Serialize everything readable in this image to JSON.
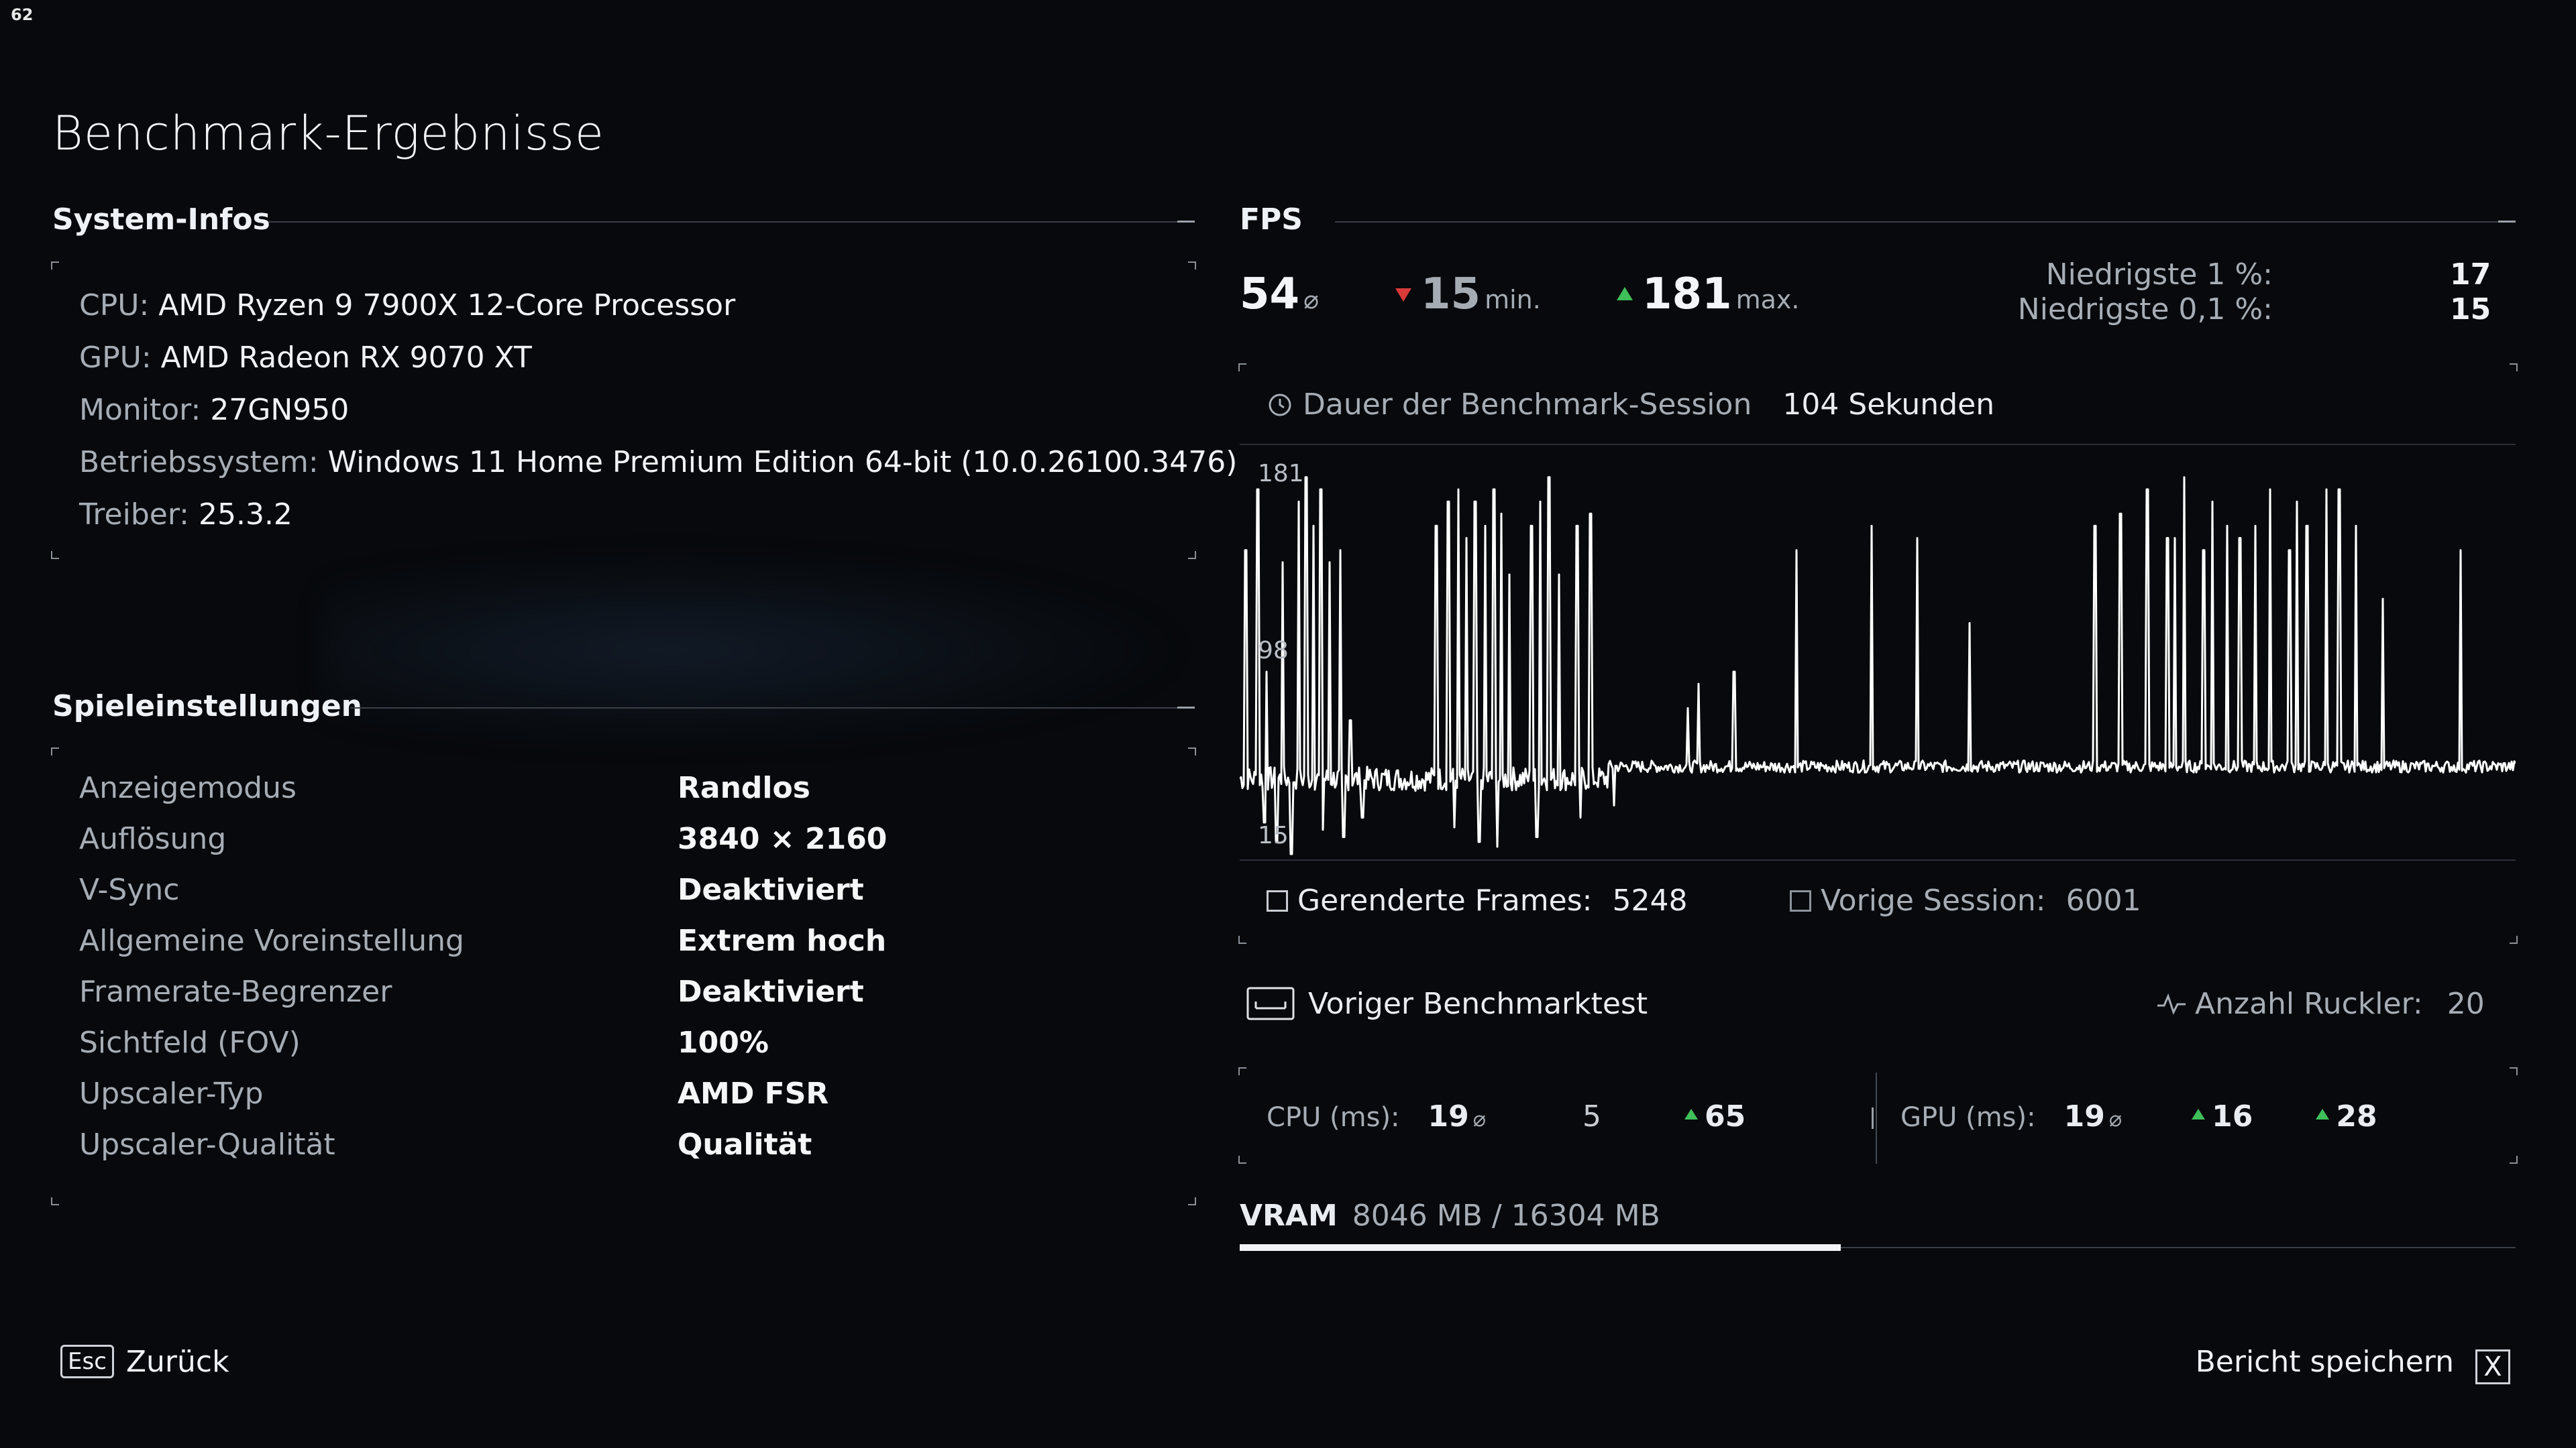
{
  "overlay": {
    "fps_counter": "62"
  },
  "title": "Benchmark-Ergebnisse",
  "system_info": {
    "heading": "System-Infos",
    "items": [
      {
        "label": "CPU:",
        "value": "AMD Ryzen 9 7900X 12-Core Processor"
      },
      {
        "label": "GPU:",
        "value": "AMD Radeon RX 9070 XT"
      },
      {
        "label": "Monitor:",
        "value": "27GN950"
      },
      {
        "label": "Betriebssystem:",
        "value": "Windows 11 Home Premium Edition 64-bit (10.0.26100.3476)"
      },
      {
        "label": "Treiber:",
        "value": "25.3.2"
      }
    ]
  },
  "game_settings": {
    "heading": "Spieleinstellungen",
    "rows": [
      {
        "label": "Anzeigemodus",
        "value": "Randlos"
      },
      {
        "label": "Auflösung",
        "value": "3840 × 2160"
      },
      {
        "label": "V-Sync",
        "value": "Deaktiviert"
      },
      {
        "label": "Allgemeine Voreinstellung",
        "value": "Extrem hoch"
      },
      {
        "label": "Framerate-Begrenzer",
        "value": "Deaktiviert"
      },
      {
        "label": "Sichtfeld (FOV)",
        "value": "100%"
      },
      {
        "label": "Upscaler-Typ",
        "value": "AMD FSR"
      },
      {
        "label": "Upscaler-Qualität",
        "value": "Qualität"
      }
    ]
  },
  "fps": {
    "heading": "FPS",
    "avg": "54",
    "avg_unit": "⌀",
    "min": "15",
    "min_unit": "min.",
    "max": "181",
    "max_unit": "max.",
    "low1_label": "Niedrigste 1 %:",
    "low1_value": "17",
    "low01_label": "Niedrigste 0,1 %:",
    "low01_value": "15",
    "duration_label": "Dauer der Benchmark-Session",
    "duration_value": "104 Sekunden",
    "rendered_label": "Gerenderte Frames:",
    "rendered_value": "5248",
    "previous_label": "Vorige Session:",
    "previous_value": "6001"
  },
  "chart_data": {
    "type": "line",
    "title": "",
    "xlabel": "",
    "ylabel": "",
    "y_ticks": [
      "181",
      "98",
      "15"
    ],
    "ylim": [
      15,
      181
    ],
    "series": [
      {
        "baseline": 50,
        "spikes": [
          [
            0.5,
            140
          ],
          [
            1.5,
            165
          ],
          [
            2.2,
            90
          ],
          [
            3.5,
            135
          ],
          [
            4.8,
            160
          ],
          [
            5.4,
            170
          ],
          [
            6.0,
            150
          ],
          [
            6.6,
            165
          ],
          [
            7.3,
            135
          ],
          [
            8.2,
            140
          ],
          [
            9.0,
            70
          ],
          [
            16.0,
            150
          ],
          [
            17.0,
            160
          ],
          [
            17.8,
            165
          ],
          [
            18.5,
            145
          ],
          [
            19.2,
            160
          ],
          [
            20.0,
            150
          ],
          [
            20.7,
            165
          ],
          [
            21.3,
            155
          ],
          [
            22.0,
            130
          ],
          [
            23.8,
            150
          ],
          [
            24.5,
            160
          ],
          [
            25.2,
            170
          ],
          [
            26.0,
            130
          ],
          [
            27.5,
            150
          ],
          [
            28.6,
            155
          ],
          [
            36.5,
            75
          ],
          [
            37.4,
            85
          ],
          [
            40.3,
            90
          ],
          [
            45.4,
            140
          ],
          [
            51.5,
            150
          ],
          [
            55.2,
            145
          ],
          [
            59.5,
            110
          ],
          [
            69.7,
            150
          ],
          [
            71.8,
            155
          ],
          [
            74.0,
            165
          ],
          [
            75.6,
            145
          ],
          [
            76.2,
            145
          ],
          [
            77.0,
            170
          ],
          [
            78.6,
            140
          ],
          [
            79.3,
            160
          ],
          [
            80.5,
            150
          ],
          [
            81.5,
            145
          ],
          [
            82.8,
            150
          ],
          [
            84.0,
            165
          ],
          [
            85.6,
            140
          ],
          [
            86.2,
            160
          ],
          [
            87.0,
            150
          ],
          [
            88.6,
            165
          ],
          [
            89.6,
            165
          ],
          [
            91.0,
            150
          ],
          [
            93.2,
            120
          ],
          [
            99.5,
            140
          ]
        ],
        "dips": [
          [
            2.0,
            28
          ],
          [
            3.0,
            20
          ],
          [
            4.2,
            15
          ],
          [
            6.8,
            25
          ],
          [
            8.5,
            22
          ],
          [
            10.0,
            30
          ],
          [
            17.5,
            26
          ],
          [
            19.5,
            20
          ],
          [
            21.0,
            18
          ],
          [
            24.2,
            22
          ],
          [
            27.8,
            30
          ],
          [
            30.5,
            35
          ]
        ]
      }
    ]
  },
  "previous_benchmark": {
    "label": "Voriger Benchmarktest",
    "stutter_label": "Anzahl Ruckler:",
    "stutter_value": "20"
  },
  "frametimes": {
    "cpu_label": "CPU (ms):",
    "cpu_avg": "19",
    "avg_unit": "⌀",
    "cpu_v2": "5",
    "cpu_v3": "65",
    "gpu_label": "GPU (ms):",
    "gpu_avg": "19",
    "gpu_v2": "16",
    "gpu_v3": "28"
  },
  "vram": {
    "label": "VRAM",
    "value": "8046 MB / 16304 MB",
    "used_fraction": 0.4935
  },
  "footer": {
    "back_key": "Esc",
    "back_label": "Zurück",
    "save_label": "Bericht speichern",
    "save_key": "X"
  },
  "colors": {
    "accent_up": "#3fbf5a",
    "accent_down": "#d83a3a",
    "line": "#ffffff"
  }
}
